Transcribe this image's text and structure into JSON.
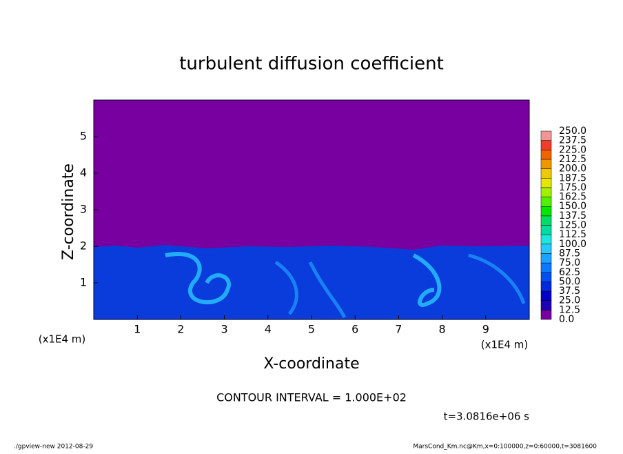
{
  "chart_data": {
    "type": "contour",
    "title": "turbulent diffusion coefficient",
    "x_label": "X-coordinate",
    "y_label": "Z-coordinate",
    "y_unit": "(x1E4 m)",
    "x_unit": "(x1E4 m)",
    "xlim": [
      0,
      10
    ],
    "xticks": [
      1,
      2,
      3,
      4,
      5,
      6,
      7,
      8,
      9
    ],
    "ylim": [
      0,
      6
    ],
    "yticks": [
      1,
      2,
      3,
      4,
      5
    ],
    "levels": [
      {
        "value": 0,
        "label": "0.0"
      },
      {
        "value": 12.5,
        "label": "12.5"
      },
      {
        "value": 25,
        "label": "25.0"
      },
      {
        "value": 37.5,
        "label": "37.5"
      },
      {
        "value": 50,
        "label": "50.0"
      },
      {
        "value": 62.5,
        "label": "62.5"
      },
      {
        "value": 75,
        "label": "75.0"
      },
      {
        "value": 87.5,
        "label": "87.5"
      },
      {
        "value": 100,
        "label": "100.0"
      },
      {
        "value": 112.5,
        "label": "112.5"
      },
      {
        "value": 125,
        "label": "125.0"
      },
      {
        "value": 137.5,
        "label": "137.5"
      },
      {
        "value": 150,
        "label": "150.0"
      },
      {
        "value": 162.5,
        "label": "162.5"
      },
      {
        "value": 175,
        "label": "175.0"
      },
      {
        "value": 187.5,
        "label": "187.5"
      },
      {
        "value": 200,
        "label": "200.0"
      },
      {
        "value": 212.5,
        "label": "212.5"
      },
      {
        "value": 225,
        "label": "225.0"
      },
      {
        "value": 237.5,
        "label": "237.5"
      },
      {
        "value": 250,
        "label": "250.0"
      }
    ],
    "colors": [
      "#7800a0",
      "#1e00b4",
      "#0000c8",
      "#0028dc",
      "#0050f0",
      "#0a78ff",
      "#1ea0ff",
      "#28c8ff",
      "#1ee6dc",
      "#00dca0",
      "#00dc64",
      "#00e600",
      "#50f000",
      "#a0f000",
      "#e6e600",
      "#f0c800",
      "#f09600",
      "#f06400",
      "#f03c28",
      "#f09696"
    ],
    "contour_interval": "CONTOUR INTERVAL = 1.000E+02",
    "time": "t=3.0816e+06 s",
    "footer_left": "./gpview-new  2012-08-29",
    "footer_right": "MarsCond_Km.nc@Km,x=0:100000,z=0:60000,t=3081600"
  }
}
